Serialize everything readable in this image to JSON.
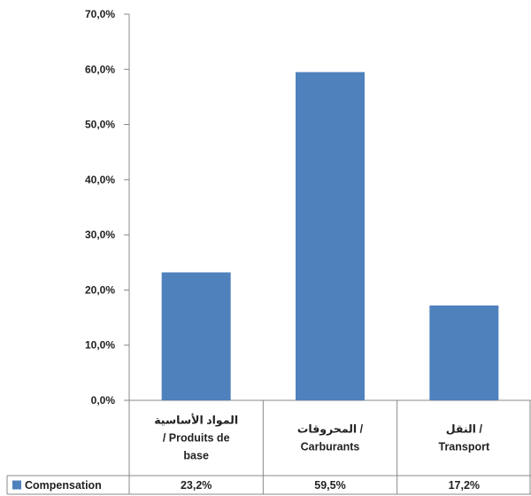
{
  "chart_data": {
    "type": "bar",
    "categories": [
      {
        "lines": [
          "المواد الأساسية",
          "/ Produits de",
          "base"
        ]
      },
      {
        "lines": [
          "المحروقات /",
          "Carburants"
        ]
      },
      {
        "lines": [
          "النقل /",
          "Transport"
        ]
      }
    ],
    "series": [
      {
        "name": "Compensation",
        "values": [
          23.2,
          59.5,
          17.2
        ],
        "labels": [
          "23,2%",
          "59,5%",
          "17,2%"
        ]
      }
    ],
    "ylim": [
      0,
      70
    ],
    "yticks": [
      "0,0%",
      "10,0%",
      "20,0%",
      "30,0%",
      "40,0%",
      "50,0%",
      "60,0%",
      "70,0%"
    ],
    "grid": false,
    "legend": "data-table-left",
    "bar_color": "#4F81BD"
  }
}
